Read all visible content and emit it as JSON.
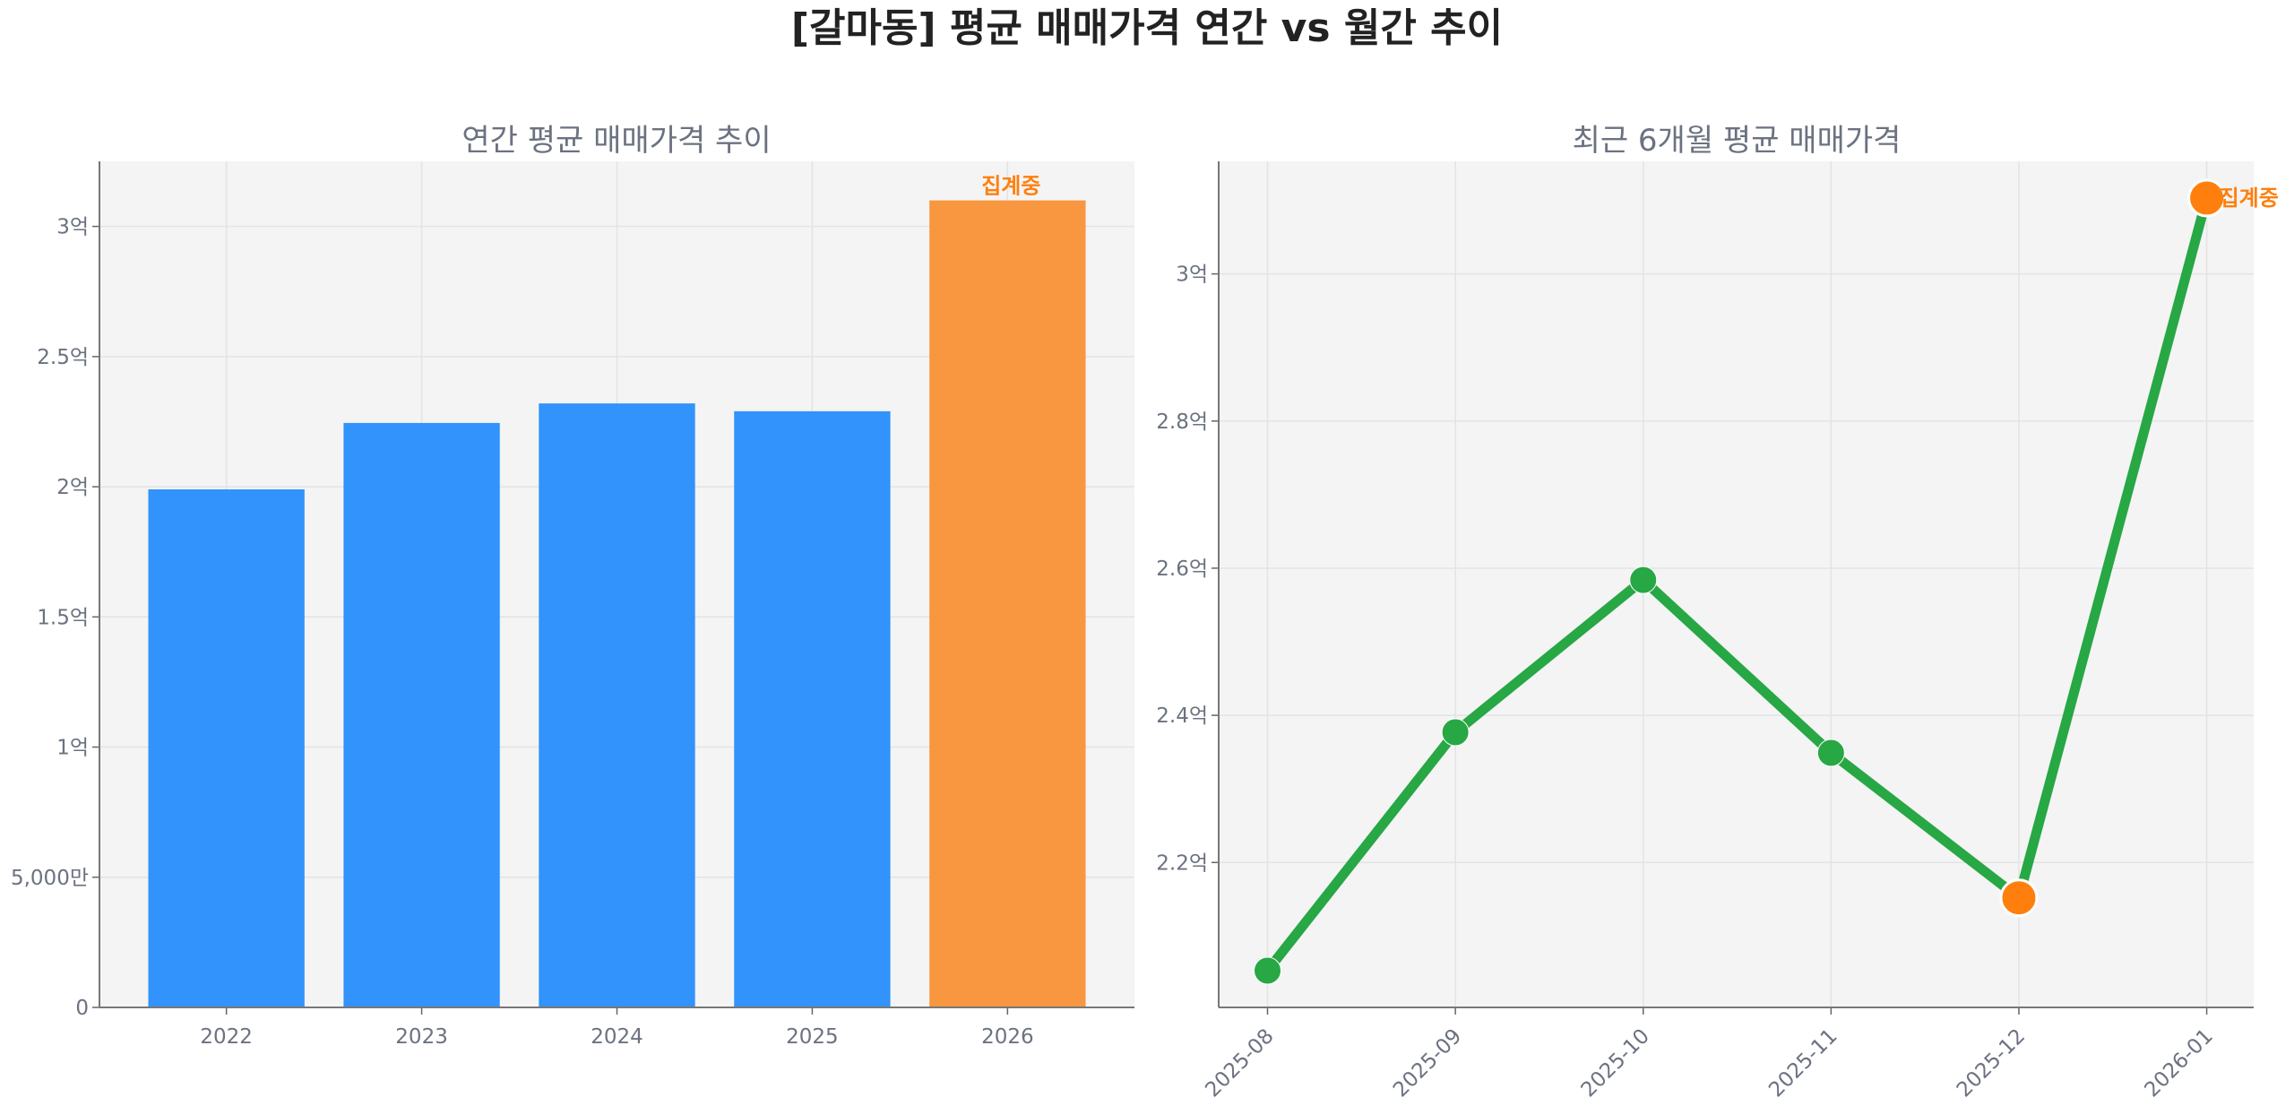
{
  "suptitle": "[갈마동] 평균 매매가격 연간 vs 월간 추이",
  "colors": {
    "bar": "#3193fb",
    "bar_highlight": "#f99640",
    "line": "#28a745",
    "marker_highlight": "#ff7f0e",
    "annotation": "#ff7f0e",
    "plot_bg": "#f4f4f4"
  },
  "chart_data": [
    {
      "type": "bar",
      "title": "연간 평균 매매가격 추이",
      "categories": [
        "2022",
        "2023",
        "2024",
        "2025",
        "2026"
      ],
      "values": [
        199000000,
        224500000,
        232000000,
        229000000,
        310000000
      ],
      "highlight_index": 4,
      "annotation": "집계중",
      "ylim": [
        0,
        325000000
      ],
      "yticks": [
        0,
        50000000,
        100000000,
        150000000,
        200000000,
        250000000,
        300000000
      ],
      "ytick_labels": [
        "0",
        "5,000만",
        "1억",
        "1.5억",
        "2억",
        "2.5억",
        "3억"
      ],
      "grid": true
    },
    {
      "type": "line",
      "title": "최근 6개월 평균 매매가격",
      "categories": [
        "2025-08",
        "2025-09",
        "2025-10",
        "2025-11",
        "2025-12",
        "2026-01"
      ],
      "values": [
        205300000,
        237700000,
        258400000,
        234900000,
        215200000,
        310300000
      ],
      "highlight_indices": [
        4,
        5
      ],
      "annotation": "집계중",
      "ylim": [
        200300000,
        315300000
      ],
      "yticks": [
        220000000,
        240000000,
        260000000,
        280000000,
        300000000
      ],
      "ytick_labels": [
        "2.2억",
        "2.4억",
        "2.6억",
        "2.8억",
        "3억"
      ],
      "grid": true
    }
  ]
}
